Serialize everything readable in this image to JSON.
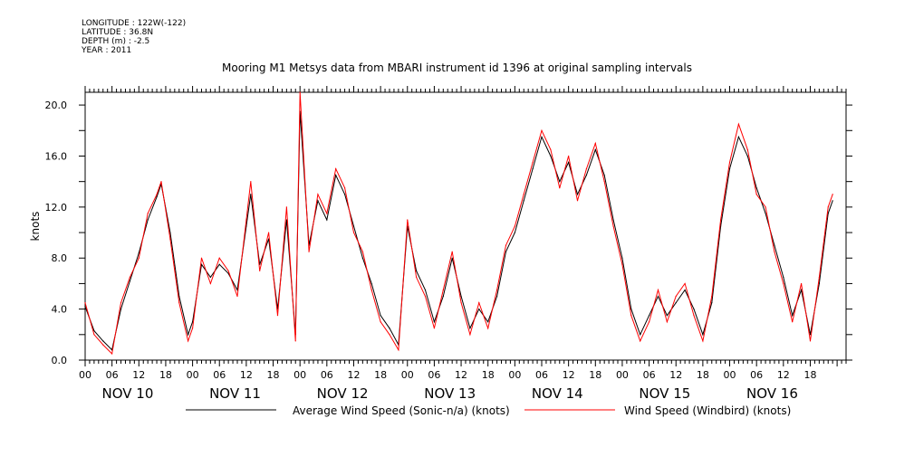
{
  "header": {
    "meta": [
      "LONGITUDE : 122W(-122)",
      "LATITUDE : 36.8N",
      "DEPTH (m) : -2.5",
      "YEAR : 2011"
    ],
    "title": "Mooring M1 Metsys data from MBARI instrument id 1396 at original sampling intervals"
  },
  "chart_data": {
    "type": "line",
    "title": "Mooring M1 Metsys data from MBARI instrument id 1396 at original sampling intervals",
    "ylabel": "knots",
    "xlabel": "",
    "ylim": [
      0,
      21
    ],
    "xlim_hours": [
      0,
      170
    ],
    "y_ticks": [
      "0.0",
      "4.0",
      "8.0",
      "12.0",
      "16.0",
      "20.0"
    ],
    "x_tick_hours": [
      "00",
      "06",
      "12",
      "18",
      "00",
      "06",
      "12",
      "18",
      "00",
      "06",
      "12",
      "18",
      "00",
      "06",
      "12",
      "18",
      "00",
      "06",
      "12",
      "18",
      "00",
      "06",
      "12",
      "18",
      "00",
      "06",
      "12",
      "18"
    ],
    "days": [
      "NOV 10",
      "NOV 11",
      "NOV 12",
      "NOV 13",
      "NOV 14",
      "NOV 15",
      "NOV 16"
    ],
    "legend_position": "bottom",
    "series": [
      {
        "name": "Average Wind Speed (Sonic-n/a) (knots)",
        "color": "#000000",
        "points": [
          [
            "NOV 10 00:00",
            4.2
          ],
          [
            "NOV 10 02:00",
            2.3
          ],
          [
            "NOV 10 04:00",
            1.5
          ],
          [
            "NOV 10 06:00",
            0.8
          ],
          [
            "NOV 10 08:00",
            4.0
          ],
          [
            "NOV 10 10:00",
            6.2
          ],
          [
            "NOV 10 12:00",
            8.4
          ],
          [
            "NOV 10 14:00",
            11.0
          ],
          [
            "NOV 10 16:00",
            12.8
          ],
          [
            "NOV 10 17:00",
            13.8
          ],
          [
            "NOV 10 19:00",
            10.0
          ],
          [
            "NOV 10 21:00",
            5.0
          ],
          [
            "NOV 10 23:00",
            2.0
          ],
          [
            "NOV 11 00:00",
            3.0
          ],
          [
            "NOV 11 02:00",
            7.5
          ],
          [
            "NOV 11 04:00",
            6.5
          ],
          [
            "NOV 11 06:00",
            7.5
          ],
          [
            "NOV 11 08:00",
            6.8
          ],
          [
            "NOV 11 10:00",
            5.5
          ],
          [
            "NOV 11 12:00",
            10.5
          ],
          [
            "NOV 11 13:00",
            13.0
          ],
          [
            "NOV 11 15:00",
            7.5
          ],
          [
            "NOV 11 17:00",
            9.5
          ],
          [
            "NOV 11 19:00",
            4.0
          ],
          [
            "NOV 11 21:00",
            11.0
          ],
          [
            "NOV 11 23:00",
            2.0
          ],
          [
            "NOV 12 00:00",
            19.5
          ],
          [
            "NOV 12 02:00",
            9.0
          ],
          [
            "NOV 12 04:00",
            12.5
          ],
          [
            "NOV 12 06:00",
            11.0
          ],
          [
            "NOV 12 08:00",
            14.5
          ],
          [
            "NOV 12 10:00",
            13.0
          ],
          [
            "NOV 12 12:00",
            10.5
          ],
          [
            "NOV 12 14:00",
            8.0
          ],
          [
            "NOV 12 16:00",
            6.0
          ],
          [
            "NOV 12 18:00",
            3.5
          ],
          [
            "NOV 12 20:00",
            2.5
          ],
          [
            "NOV 12 22:00",
            1.2
          ],
          [
            "NOV 13 00:00",
            10.5
          ],
          [
            "NOV 13 02:00",
            7.0
          ],
          [
            "NOV 13 04:00",
            5.5
          ],
          [
            "NOV 13 06:00",
            3.0
          ],
          [
            "NOV 13 08:00",
            5.0
          ],
          [
            "NOV 13 10:00",
            8.0
          ],
          [
            "NOV 13 12:00",
            5.0
          ],
          [
            "NOV 13 14:00",
            2.5
          ],
          [
            "NOV 13 16:00",
            4.0
          ],
          [
            "NOV 13 18:00",
            3.0
          ],
          [
            "NOV 13 20:00",
            5.0
          ],
          [
            "NOV 13 22:00",
            8.5
          ],
          [
            "NOV 14 00:00",
            10.0
          ],
          [
            "NOV 14 02:00",
            12.5
          ],
          [
            "NOV 14 04:00",
            15.0
          ],
          [
            "NOV 14 06:00",
            17.5
          ],
          [
            "NOV 14 08:00",
            16.0
          ],
          [
            "NOV 14 10:00",
            14.0
          ],
          [
            "NOV 14 12:00",
            15.5
          ],
          [
            "NOV 14 14:00",
            13.0
          ],
          [
            "NOV 14 16:00",
            14.5
          ],
          [
            "NOV 14 18:00",
            16.5
          ],
          [
            "NOV 14 20:00",
            14.5
          ],
          [
            "NOV 14 22:00",
            11.0
          ],
          [
            "NOV 15 00:00",
            8.0
          ],
          [
            "NOV 15 02:00",
            4.0
          ],
          [
            "NOV 15 04:00",
            2.0
          ],
          [
            "NOV 15 06:00",
            3.5
          ],
          [
            "NOV 15 08:00",
            5.0
          ],
          [
            "NOV 15 10:00",
            3.5
          ],
          [
            "NOV 15 12:00",
            4.5
          ],
          [
            "NOV 15 14:00",
            5.5
          ],
          [
            "NOV 15 16:00",
            4.0
          ],
          [
            "NOV 15 18:00",
            2.0
          ],
          [
            "NOV 15 20:00",
            4.5
          ],
          [
            "NOV 15 22:00",
            10.5
          ],
          [
            "NOV 16 00:00",
            15.0
          ],
          [
            "NOV 16 02:00",
            17.5
          ],
          [
            "NOV 16 04:00",
            16.0
          ],
          [
            "NOV 16 06:00",
            13.5
          ],
          [
            "NOV 16 08:00",
            11.5
          ],
          [
            "NOV 16 10:00",
            9.0
          ],
          [
            "NOV 16 12:00",
            6.5
          ],
          [
            "NOV 16 14:00",
            3.5
          ],
          [
            "NOV 16 16:00",
            5.5
          ],
          [
            "NOV 16 18:00",
            2.0
          ],
          [
            "NOV 16 20:00",
            6.0
          ],
          [
            "NOV 16 22:00",
            11.5
          ],
          [
            "NOV 16 23:00",
            12.5
          ]
        ]
      },
      {
        "name": "Wind Speed (Windbird) (knots)",
        "color": "#ff0000",
        "points": [
          [
            "NOV 10 00:00",
            4.5
          ],
          [
            "NOV 10 02:00",
            2.0
          ],
          [
            "NOV 10 04:00",
            1.2
          ],
          [
            "NOV 10 06:00",
            0.5
          ],
          [
            "NOV 10 08:00",
            4.5
          ],
          [
            "NOV 10 10:00",
            6.5
          ],
          [
            "NOV 10 12:00",
            8.0
          ],
          [
            "NOV 10 14:00",
            11.5
          ],
          [
            "NOV 10 16:00",
            13.0
          ],
          [
            "NOV 10 17:00",
            14.0
          ],
          [
            "NOV 10 19:00",
            9.5
          ],
          [
            "NOV 10 21:00",
            4.5
          ],
          [
            "NOV 10 23:00",
            1.5
          ],
          [
            "NOV 11 00:00",
            2.5
          ],
          [
            "NOV 11 02:00",
            8.0
          ],
          [
            "NOV 11 04:00",
            6.0
          ],
          [
            "NOV 11 06:00",
            8.0
          ],
          [
            "NOV 11 08:00",
            7.0
          ],
          [
            "NOV 11 10:00",
            5.0
          ],
          [
            "NOV 11 12:00",
            11.0
          ],
          [
            "NOV 11 13:00",
            14.0
          ],
          [
            "NOV 11 15:00",
            7.0
          ],
          [
            "NOV 11 17:00",
            10.0
          ],
          [
            "NOV 11 19:00",
            3.5
          ],
          [
            "NOV 11 21:00",
            12.0
          ],
          [
            "NOV 11 23:00",
            1.5
          ],
          [
            "NOV 12 00:00",
            21.0
          ],
          [
            "NOV 12 02:00",
            8.5
          ],
          [
            "NOV 12 04:00",
            13.0
          ],
          [
            "NOV 12 06:00",
            11.5
          ],
          [
            "NOV 12 08:00",
            15.0
          ],
          [
            "NOV 12 10:00",
            13.5
          ],
          [
            "NOV 12 12:00",
            10.0
          ],
          [
            "NOV 12 14:00",
            8.5
          ],
          [
            "NOV 12 16:00",
            5.5
          ],
          [
            "NOV 12 18:00",
            3.0
          ],
          [
            "NOV 12 20:00",
            2.0
          ],
          [
            "NOV 12 22:00",
            0.8
          ],
          [
            "NOV 13 00:00",
            11.0
          ],
          [
            "NOV 13 02:00",
            6.5
          ],
          [
            "NOV 13 04:00",
            5.0
          ],
          [
            "NOV 13 06:00",
            2.5
          ],
          [
            "NOV 13 08:00",
            5.5
          ],
          [
            "NOV 13 10:00",
            8.5
          ],
          [
            "NOV 13 12:00",
            4.5
          ],
          [
            "NOV 13 14:00",
            2.0
          ],
          [
            "NOV 13 16:00",
            4.5
          ],
          [
            "NOV 13 18:00",
            2.5
          ],
          [
            "NOV 13 20:00",
            5.5
          ],
          [
            "NOV 13 22:00",
            9.0
          ],
          [
            "NOV 14 00:00",
            10.5
          ],
          [
            "NOV 14 02:00",
            13.0
          ],
          [
            "NOV 14 04:00",
            15.5
          ],
          [
            "NOV 14 06:00",
            18.0
          ],
          [
            "NOV 14 08:00",
            16.5
          ],
          [
            "NOV 14 10:00",
            13.5
          ],
          [
            "NOV 14 12:00",
            16.0
          ],
          [
            "NOV 14 14:00",
            12.5
          ],
          [
            "NOV 14 16:00",
            15.0
          ],
          [
            "NOV 14 18:00",
            17.0
          ],
          [
            "NOV 14 20:00",
            14.0
          ],
          [
            "NOV 14 22:00",
            10.5
          ],
          [
            "NOV 15 00:00",
            7.5
          ],
          [
            "NOV 15 02:00",
            3.5
          ],
          [
            "NOV 15 04:00",
            1.5
          ],
          [
            "NOV 15 06:00",
            3.0
          ],
          [
            "NOV 15 08:00",
            5.5
          ],
          [
            "NOV 15 10:00",
            3.0
          ],
          [
            "NOV 15 12:00",
            5.0
          ],
          [
            "NOV 15 14:00",
            6.0
          ],
          [
            "NOV 15 16:00",
            3.5
          ],
          [
            "NOV 15 18:00",
            1.5
          ],
          [
            "NOV 15 20:00",
            5.0
          ],
          [
            "NOV 15 22:00",
            11.0
          ],
          [
            "NOV 16 00:00",
            15.5
          ],
          [
            "NOV 16 02:00",
            18.5
          ],
          [
            "NOV 16 04:00",
            16.5
          ],
          [
            "NOV 16 06:00",
            13.0
          ],
          [
            "NOV 16 08:00",
            12.0
          ],
          [
            "NOV 16 10:00",
            8.5
          ],
          [
            "NOV 16 12:00",
            6.0
          ],
          [
            "NOV 16 14:00",
            3.0
          ],
          [
            "NOV 16 16:00",
            6.0
          ],
          [
            "NOV 16 18:00",
            1.5
          ],
          [
            "NOV 16 20:00",
            6.5
          ],
          [
            "NOV 16 22:00",
            12.0
          ],
          [
            "NOV 16 23:00",
            13.0
          ]
        ]
      }
    ]
  }
}
